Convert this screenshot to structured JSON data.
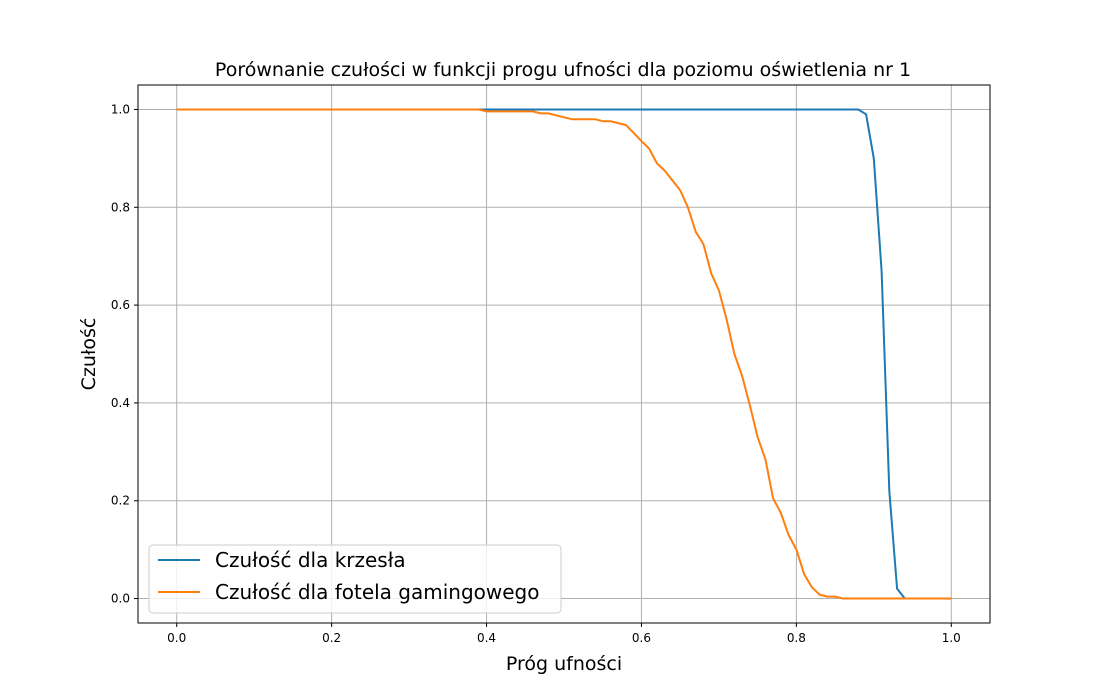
{
  "chart_data": {
    "type": "line",
    "title": "Porównanie czułości w funkcji progu ufności dla poziomu oświetlenia nr 1",
    "xlabel": "Próg ufności",
    "ylabel": "Czułość",
    "xlim": [
      -0.05,
      1.05
    ],
    "ylim": [
      -0.05,
      1.05
    ],
    "xticks": [
      0.0,
      0.2,
      0.4,
      0.6,
      0.8,
      1.0
    ],
    "xtick_labels": [
      "0.0",
      "0.2",
      "0.4",
      "0.6",
      "0.8",
      "1.0"
    ],
    "yticks": [
      0.0,
      0.2,
      0.4,
      0.6,
      0.8,
      1.0
    ],
    "ytick_labels": [
      "0.0",
      "0.2",
      "0.4",
      "0.6",
      "0.8",
      "1.0"
    ],
    "grid": true,
    "legend_position": "lower-left",
    "series": [
      {
        "name": "Czułość dla krzesła",
        "color": "#1f77b4",
        "x": [
          0.0,
          0.1,
          0.2,
          0.3,
          0.4,
          0.5,
          0.6,
          0.7,
          0.8,
          0.85,
          0.88,
          0.89,
          0.9,
          0.91,
          0.92,
          0.93,
          0.94,
          0.95,
          1.0
        ],
        "y": [
          1.0,
          1.0,
          1.0,
          1.0,
          1.0,
          1.0,
          1.0,
          1.0,
          1.0,
          1.0,
          1.0,
          0.99,
          0.9,
          0.67,
          0.22,
          0.02,
          0.0,
          0.0,
          0.0
        ]
      },
      {
        "name": "Czułość dla fotela gamingowego",
        "color": "#ff7f0e",
        "x": [
          0.0,
          0.1,
          0.2,
          0.3,
          0.39,
          0.4,
          0.43,
          0.46,
          0.47,
          0.48,
          0.5,
          0.51,
          0.53,
          0.54,
          0.55,
          0.56,
          0.57,
          0.58,
          0.59,
          0.6,
          0.61,
          0.62,
          0.63,
          0.64,
          0.65,
          0.66,
          0.67,
          0.68,
          0.69,
          0.7,
          0.71,
          0.72,
          0.73,
          0.74,
          0.75,
          0.76,
          0.77,
          0.78,
          0.79,
          0.8,
          0.81,
          0.82,
          0.83,
          0.84,
          0.85,
          0.86,
          0.9,
          0.95,
          1.0
        ],
        "y": [
          1.0,
          1.0,
          1.0,
          1.0,
          1.0,
          0.996,
          0.996,
          0.996,
          0.992,
          0.992,
          0.984,
          0.98,
          0.98,
          0.98,
          0.976,
          0.976,
          0.972,
          0.968,
          0.952,
          0.935,
          0.92,
          0.89,
          0.875,
          0.855,
          0.835,
          0.8,
          0.75,
          0.725,
          0.665,
          0.63,
          0.57,
          0.5,
          0.455,
          0.395,
          0.33,
          0.285,
          0.205,
          0.175,
          0.13,
          0.1,
          0.05,
          0.023,
          0.008,
          0.004,
          0.004,
          0.0,
          0.0,
          0.0,
          0.0
        ]
      }
    ]
  }
}
